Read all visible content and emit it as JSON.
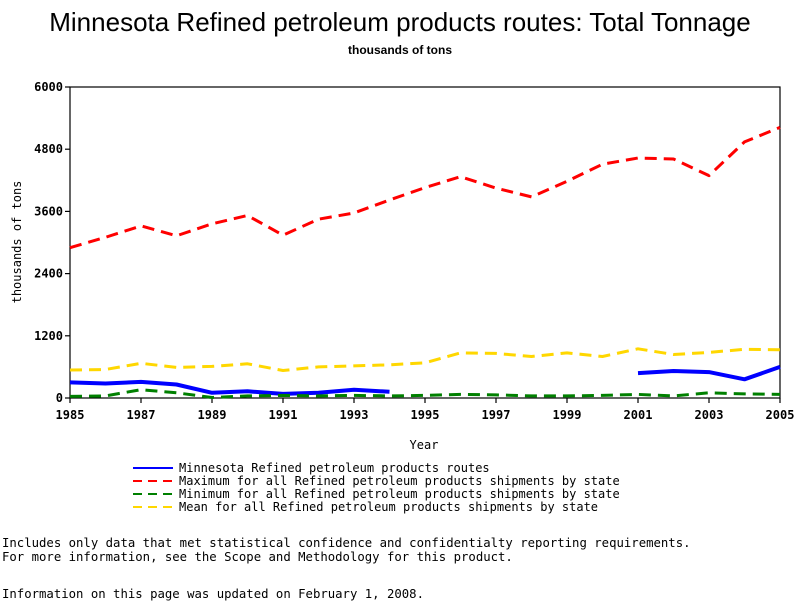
{
  "chart_data": {
    "type": "line",
    "title": "Minnesota Refined petroleum products routes: Total Tonnage",
    "subtitle": "thousands of tons",
    "xlabel": "Year",
    "ylabel": "thousands of tons",
    "xlim": [
      1985,
      2005
    ],
    "ylim": [
      0,
      6000
    ],
    "x_ticks": [
      "1985",
      "1987",
      "1989",
      "1991",
      "1993",
      "1995",
      "1997",
      "1999",
      "2001",
      "2003",
      "2005"
    ],
    "y_ticks": [
      "0",
      "1200",
      "2400",
      "3600",
      "4800",
      "6000"
    ],
    "grid": false,
    "legend_position": "bottom",
    "series": [
      {
        "name": "Minnesota Refined petroleum products routes",
        "color": "#0000ff",
        "dash": "solid",
        "segments": [
          {
            "x": [
              1985,
              1986,
              1987,
              1988,
              1989,
              1990,
              1991,
              1992,
              1993,
              1994
            ],
            "y": [
              300,
              280,
              310,
              260,
              100,
              130,
              80,
              100,
              160,
              120
            ]
          },
          {
            "x": [
              2001,
              2002,
              2003,
              2004,
              2005
            ],
            "y": [
              480,
              520,
              500,
              360,
              600
            ]
          }
        ]
      },
      {
        "name": "Maximum for all Refined petroleum products shipments by state",
        "color": "#ff0000",
        "dash": "dashed",
        "segments": [
          {
            "x": [
              1985,
              1986,
              1987,
              1988,
              1989,
              1990,
              1991,
              1992,
              1993,
              1994,
              1995,
              1996,
              1997,
              1998,
              1999,
              2000,
              2001,
              2002,
              2003,
              2004,
              2005
            ],
            "y": [
              2900,
              3100,
              3320,
              3130,
              3360,
              3520,
              3140,
              3450,
              3570,
              3820,
              4060,
              4270,
              4050,
              3880,
              4180,
              4510,
              4630,
              4610,
              4290,
              4940,
              5220
            ]
          }
        ]
      },
      {
        "name": "Minimum for all Refined petroleum products shipments by state",
        "color": "#008000",
        "dash": "dashed",
        "segments": [
          {
            "x": [
              1985,
              1986,
              1987,
              1988,
              1989,
              1990,
              1991,
              1992,
              1993,
              1994,
              1995,
              1996,
              1997,
              1998,
              1999,
              2000,
              2001,
              2002,
              2003,
              2004,
              2005
            ],
            "y": [
              30,
              40,
              160,
              100,
              10,
              40,
              50,
              40,
              50,
              40,
              50,
              70,
              60,
              40,
              40,
              50,
              70,
              40,
              100,
              80,
              70
            ]
          }
        ]
      },
      {
        "name": "Mean for all Refined petroleum products shipments by state",
        "color": "#ffd700",
        "dash": "dashed",
        "segments": [
          {
            "x": [
              1985,
              1986,
              1987,
              1988,
              1989,
              1990,
              1991,
              1992,
              1993,
              1994,
              1995,
              1996,
              1997,
              1998,
              1999,
              2000,
              2001,
              2002,
              2003,
              2004,
              2005
            ],
            "y": [
              540,
              550,
              670,
              590,
              610,
              660,
              530,
              600,
              620,
              640,
              680,
              870,
              860,
              800,
              870,
              800,
              950,
              840,
              880,
              940,
              930
            ]
          }
        ]
      }
    ]
  },
  "footnotes": {
    "line1": "Includes only data that met statistical confidence and confidentialty reporting requirements.",
    "line2": "For more information, see the Scope and Methodology for this product.",
    "line3": "Information on this page was updated on February 1, 2008."
  }
}
